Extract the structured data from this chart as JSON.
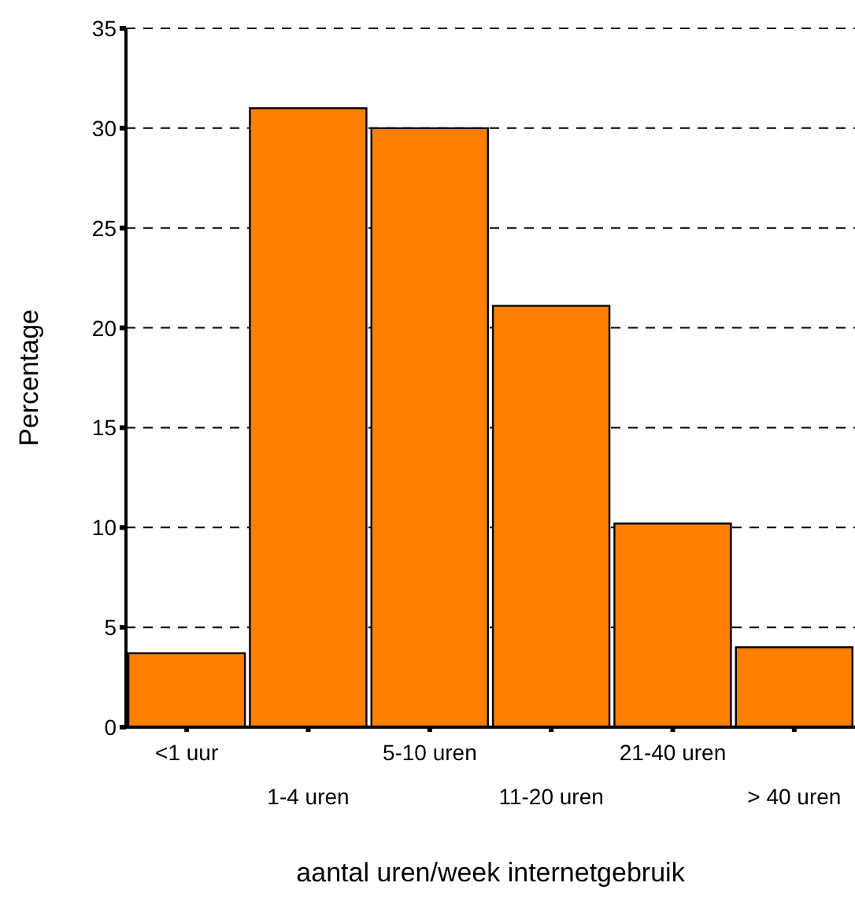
{
  "chart_data": {
    "type": "bar",
    "xlabel": "aantal uren/week internetgebruik",
    "ylabel": "Percentage",
    "categories": [
      "<1 uur",
      "1-4 uren",
      "5-10 uren",
      "11-20 uren",
      "21-40 uren",
      "> 40 uren"
    ],
    "values": [
      3.7,
      31.0,
      30.0,
      21.1,
      10.2,
      4.0
    ],
    "color": "#ff8000",
    "ylim": [
      0,
      35
    ],
    "yticks": [
      0,
      5,
      10,
      15,
      20,
      25,
      30,
      35
    ],
    "grid": "y",
    "legend": false
  }
}
